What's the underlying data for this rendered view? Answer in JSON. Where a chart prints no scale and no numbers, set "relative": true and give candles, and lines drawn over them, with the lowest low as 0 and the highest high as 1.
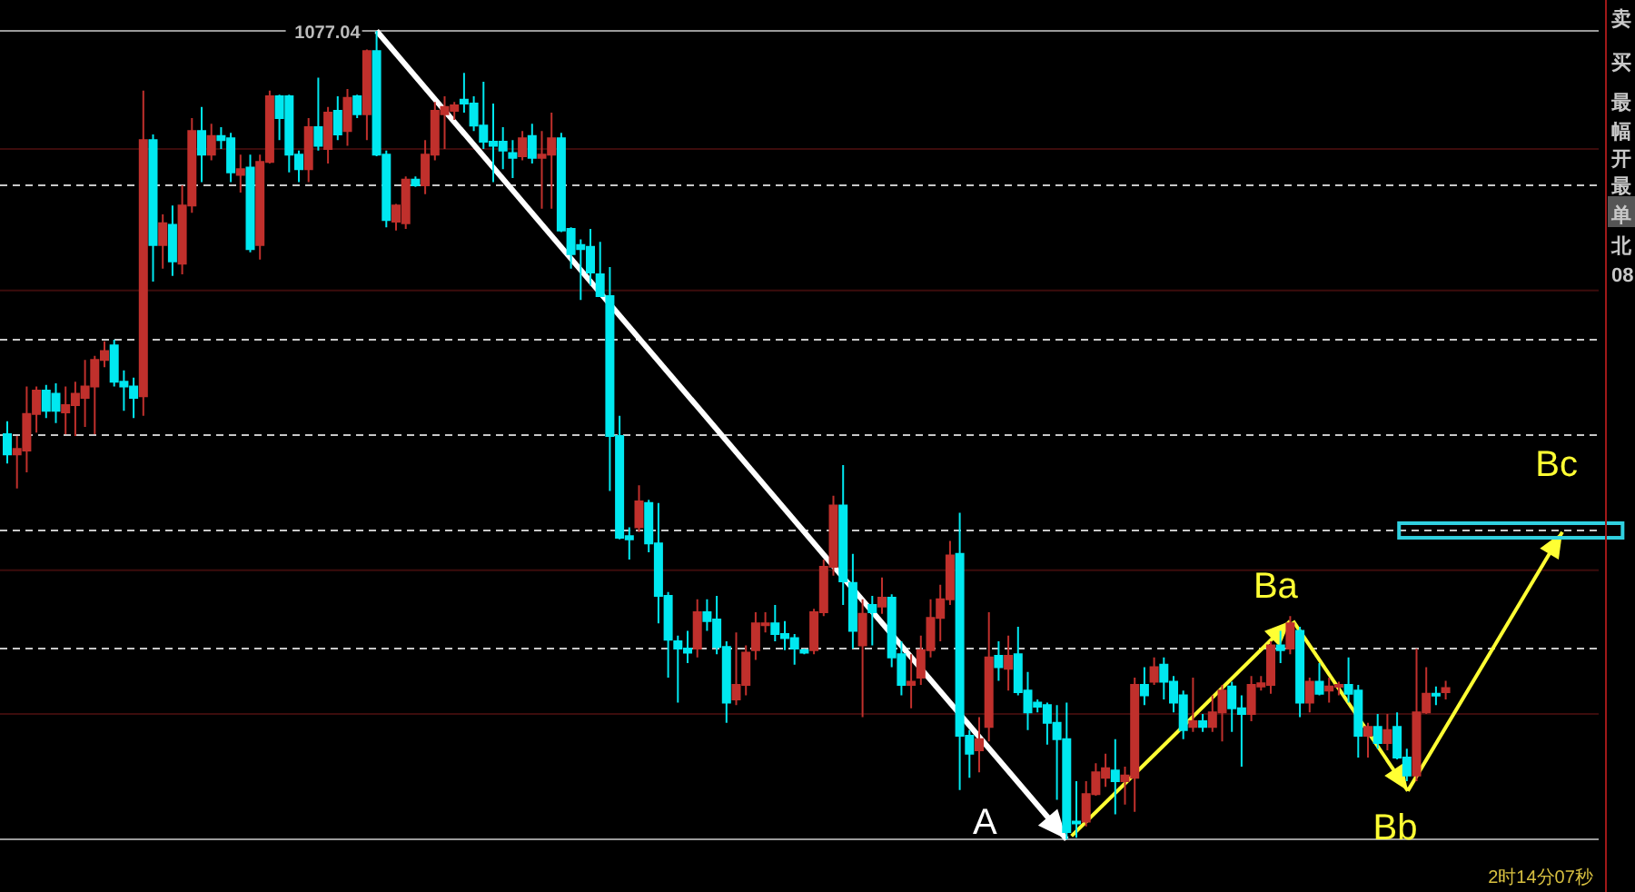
{
  "chart_data": {
    "type": "candlestick",
    "relative": true,
    "categories": [
      null,
      null,
      null,
      null,
      null,
      null,
      null,
      null,
      null,
      null,
      null,
      null,
      null,
      null,
      null,
      null,
      null,
      null,
      null,
      null,
      null,
      null,
      null,
      null,
      null,
      null,
      null,
      null,
      null,
      null,
      null,
      null,
      null,
      null,
      null,
      null,
      null,
      null,
      null,
      null,
      null,
      null,
      null,
      null,
      null,
      null,
      null,
      null,
      null,
      null,
      null,
      null,
      null,
      null,
      null,
      null,
      null,
      null,
      null,
      null,
      null,
      null,
      null,
      null,
      null,
      null,
      null,
      null,
      null,
      null,
      null,
      null,
      null,
      null,
      null,
      null,
      null,
      null,
      null,
      null,
      null,
      null,
      null,
      null,
      null,
      null,
      null,
      null,
      null,
      null,
      null,
      null,
      null,
      null,
      null,
      null,
      null,
      null,
      null,
      null,
      null,
      null,
      null,
      null,
      null,
      null,
      null,
      null,
      null,
      null,
      null,
      null,
      null,
      null,
      null,
      null,
      null,
      null,
      null,
      null,
      null,
      null,
      null,
      null,
      null,
      null,
      null,
      null,
      null,
      null,
      null,
      null,
      null,
      null,
      null,
      null,
      null,
      null,
      null,
      null,
      null,
      null,
      null,
      null,
      null,
      null,
      null,
      null,
      null
    ],
    "ohlc": [
      [
        0.501,
        0.517,
        0.465,
        0.476
      ],
      [
        0.476,
        0.499,
        0.434,
        0.483
      ],
      [
        0.481,
        0.56,
        0.454,
        0.526
      ],
      [
        0.526,
        0.56,
        0.503,
        0.555
      ],
      [
        0.555,
        0.562,
        0.521,
        0.53
      ],
      [
        0.551,
        0.564,
        0.515,
        0.53
      ],
      [
        0.528,
        0.56,
        0.501,
        0.537
      ],
      [
        0.537,
        0.566,
        0.499,
        0.551
      ],
      [
        0.546,
        0.593,
        0.51,
        0.56
      ],
      [
        0.56,
        0.598,
        0.501,
        0.593
      ],
      [
        0.593,
        0.616,
        0.584,
        0.604
      ],
      [
        0.611,
        0.618,
        0.56,
        0.566
      ],
      [
        0.566,
        0.58,
        0.53,
        0.56
      ],
      [
        0.56,
        0.571,
        0.521,
        0.546
      ],
      [
        0.548,
        0.926,
        0.524,
        0.865
      ],
      [
        0.865,
        0.872,
        0.69,
        0.735
      ],
      [
        0.735,
        0.773,
        0.706,
        0.762
      ],
      [
        0.76,
        0.784,
        0.697,
        0.715
      ],
      [
        0.712,
        0.809,
        0.699,
        0.784
      ],
      [
        0.784,
        0.892,
        0.775,
        0.876
      ],
      [
        0.876,
        0.906,
        0.813,
        0.847
      ],
      [
        0.847,
        0.885,
        0.84,
        0.87
      ],
      [
        0.87,
        0.881,
        0.854,
        0.865
      ],
      [
        0.867,
        0.874,
        0.813,
        0.825
      ],
      [
        0.822,
        0.847,
        0.8,
        0.829
      ],
      [
        0.831,
        0.847,
        0.726,
        0.73
      ],
      [
        0.735,
        0.847,
        0.717,
        0.838
      ],
      [
        0.838,
        0.926,
        0.836,
        0.919
      ],
      [
        0.919,
        0.921,
        0.865,
        0.892
      ],
      [
        0.919,
        0.921,
        0.825,
        0.847
      ],
      [
        0.847,
        0.852,
        0.813,
        0.829
      ],
      [
        0.829,
        0.892,
        0.813,
        0.881
      ],
      [
        0.881,
        0.942,
        0.852,
        0.858
      ],
      [
        0.854,
        0.906,
        0.836,
        0.899
      ],
      [
        0.901,
        0.919,
        0.865,
        0.872
      ],
      [
        0.876,
        0.928,
        0.858,
        0.917
      ],
      [
        0.919,
        0.921,
        0.892,
        0.897
      ],
      [
        0.897,
        0.977,
        0.865,
        0.975
      ],
      [
        0.975,
        1,
        0.845,
        0.847
      ],
      [
        0.847,
        0.852,
        0.757,
        0.766
      ],
      [
        0.764,
        0.786,
        0.753,
        0.784
      ],
      [
        0.762,
        0.82,
        0.755,
        0.816
      ],
      [
        0.816,
        0.82,
        0.807,
        0.809
      ],
      [
        0.809,
        0.865,
        0.798,
        0.847
      ],
      [
        0.847,
        0.912,
        0.84,
        0.901
      ],
      [
        0.897,
        0.919,
        0.854,
        0.906
      ],
      [
        0.901,
        0.912,
        0.89,
        0.908
      ],
      [
        0.915,
        0.948,
        0.899,
        0.91
      ],
      [
        0.91,
        0.919,
        0.876,
        0.883
      ],
      [
        0.883,
        0.937,
        0.854,
        0.863
      ],
      [
        0.863,
        0.91,
        0.813,
        0.858
      ],
      [
        0.863,
        0.881,
        0.829,
        0.852
      ],
      [
        0.849,
        0.865,
        0.818,
        0.843
      ],
      [
        0.845,
        0.876,
        0.84,
        0.867
      ],
      [
        0.87,
        0.885,
        0.836,
        0.843
      ],
      [
        0.843,
        0.876,
        0.78,
        0.847
      ],
      [
        0.847,
        0.899,
        0.78,
        0.867
      ],
      [
        0.867,
        0.874,
        0.751,
        0.753
      ],
      [
        0.755,
        0.757,
        0.706,
        0.724
      ],
      [
        0.735,
        0.742,
        0.667,
        0.73
      ],
      [
        0.733,
        0.755,
        0.685,
        0.701
      ],
      [
        0.699,
        0.739,
        0.672,
        0.672
      ],
      [
        0.672,
        0.708,
        0.431,
        0.499
      ],
      [
        0.499,
        0.524,
        0.371,
        0.373
      ],
      [
        0.375,
        0.386,
        0.346,
        0.371
      ],
      [
        0.386,
        0.438,
        0.38,
        0.418
      ],
      [
        0.416,
        0.42,
        0.355,
        0.366
      ],
      [
        0.366,
        0.416,
        0.267,
        0.301
      ],
      [
        0.301,
        0.306,
        0.2,
        0.247
      ],
      [
        0.245,
        0.252,
        0.169,
        0.236
      ],
      [
        0.236,
        0.258,
        0.218,
        0.231
      ],
      [
        0.236,
        0.297,
        0.225,
        0.281
      ],
      [
        0.281,
        0.297,
        0.258,
        0.27
      ],
      [
        0.272,
        0.301,
        0.229,
        0.238
      ],
      [
        0.238,
        0.245,
        0.144,
        0.169
      ],
      [
        0.173,
        0.256,
        0.166,
        0.191
      ],
      [
        0.191,
        0.24,
        0.178,
        0.231
      ],
      [
        0.234,
        0.281,
        0.222,
        0.267
      ],
      [
        0.265,
        0.281,
        0.256,
        0.267
      ],
      [
        0.267,
        0.29,
        0.245,
        0.254
      ],
      [
        0.254,
        0.27,
        0.234,
        0.249
      ],
      [
        0.249,
        0.254,
        0.216,
        0.236
      ],
      [
        0.234,
        0.236,
        0.229,
        0.231
      ],
      [
        0.234,
        0.285,
        0.229,
        0.281
      ],
      [
        0.281,
        0.346,
        0.276,
        0.337
      ],
      [
        0.337,
        0.425,
        0.326,
        0.413
      ],
      [
        0.413,
        0.463,
        0.29,
        0.319
      ],
      [
        0.317,
        0.353,
        0.236,
        0.258
      ],
      [
        0.24,
        0.297,
        0.151,
        0.279
      ],
      [
        0.29,
        0.301,
        0.24,
        0.281
      ],
      [
        0.288,
        0.324,
        0.279,
        0.299
      ],
      [
        0.299,
        0.303,
        0.213,
        0.225
      ],
      [
        0.229,
        0.245,
        0.178,
        0.191
      ],
      [
        0.191,
        0.229,
        0.162,
        0.195
      ],
      [
        0.2,
        0.252,
        0.191,
        0.234
      ],
      [
        0.234,
        0.297,
        0.225,
        0.274
      ],
      [
        0.274,
        0.315,
        0.245,
        0.297
      ],
      [
        0.297,
        0.369,
        0.29,
        0.351
      ],
      [
        0.353,
        0.404,
        0.061,
        0.128
      ],
      [
        0.128,
        0.135,
        0.076,
        0.106
      ],
      [
        0.11,
        0.151,
        0.083,
        0.124
      ],
      [
        0.139,
        0.281,
        0.121,
        0.225
      ],
      [
        0.227,
        0.245,
        0.196,
        0.213
      ],
      [
        0.211,
        0.252,
        0.184,
        0.227
      ],
      [
        0.229,
        0.263,
        0.178,
        0.182
      ],
      [
        0.184,
        0.207,
        0.135,
        0.157
      ],
      [
        0.169,
        0.173,
        0.157,
        0.164
      ],
      [
        0.166,
        0.169,
        0.117,
        0.144
      ],
      [
        0.144,
        0.166,
        0.049,
        0.124
      ],
      [
        0.124,
        0.169,
        0,
        0.009
      ],
      [
        0.022,
        0.072,
        0.002,
        0.02
      ],
      [
        0.022,
        0.072,
        0.016,
        0.056
      ],
      [
        0.056,
        0.094,
        0.054,
        0.083
      ],
      [
        0.076,
        0.106,
        0.065,
        0.088
      ],
      [
        0.085,
        0.124,
        0.031,
        0.072
      ],
      [
        0.072,
        0.09,
        0.043,
        0.079
      ],
      [
        0.076,
        0.2,
        0.034,
        0.191
      ],
      [
        0.191,
        0.213,
        0.166,
        0.178
      ],
      [
        0.195,
        0.225,
        0.191,
        0.213
      ],
      [
        0.216,
        0.225,
        0.173,
        0.195
      ],
      [
        0.195,
        0.202,
        0.157,
        0.169
      ],
      [
        0.178,
        0.184,
        0.124,
        0.135
      ],
      [
        0.139,
        0.2,
        0.133,
        0.146
      ],
      [
        0.146,
        0.155,
        0.133,
        0.139
      ],
      [
        0.139,
        0.178,
        0.133,
        0.157
      ],
      [
        0.157,
        0.191,
        0.121,
        0.184
      ],
      [
        0.189,
        0.195,
        0.133,
        0.162
      ],
      [
        0.162,
        0.178,
        0.09,
        0.155
      ],
      [
        0.155,
        0.202,
        0.146,
        0.191
      ],
      [
        0.189,
        0.202,
        0.184,
        0.193
      ],
      [
        0.191,
        0.245,
        0.18,
        0.24
      ],
      [
        0.24,
        0.258,
        0.218,
        0.234
      ],
      [
        0.236,
        0.276,
        0.229,
        0.267
      ],
      [
        0.258,
        0.263,
        0.151,
        0.169
      ],
      [
        0.169,
        0.2,
        0.157,
        0.195
      ],
      [
        0.195,
        0.218,
        0.178,
        0.18
      ],
      [
        0.184,
        0.2,
        0.169,
        0.189
      ],
      [
        0.189,
        0.195,
        0.178,
        0.191
      ],
      [
        0.191,
        0.225,
        0.169,
        0.18
      ],
      [
        0.184,
        0.191,
        0.101,
        0.128
      ],
      [
        0.128,
        0.144,
        0.101,
        0.139
      ],
      [
        0.139,
        0.155,
        0.112,
        0.119
      ],
      [
        0.119,
        0.155,
        0.11,
        0.135
      ],
      [
        0.139,
        0.157,
        0.099,
        0.101
      ],
      [
        0.101,
        0.112,
        0.072,
        0.079
      ],
      [
        0.079,
        0.236,
        0.072,
        0.157
      ],
      [
        0.157,
        0.213,
        0.155,
        0.18
      ],
      [
        0.18,
        0.189,
        0.166,
        0.178
      ],
      [
        0.182,
        0.196,
        0.173,
        0.187
      ]
    ],
    "ref_lines": [
      {
        "axis": "y",
        "value": 1,
        "color": "#9a9a9a",
        "line_style": "solid"
      },
      {
        "axis": "y",
        "value": 0,
        "color": "#9a9a9a",
        "line_style": "solid"
      },
      {
        "axis": "y",
        "value": 0.809,
        "color": "#c8c8c8",
        "line_style": "dashed"
      },
      {
        "axis": "y",
        "value": 0.618,
        "color": "#c8c8c8",
        "line_style": "dashed"
      },
      {
        "axis": "y",
        "value": 0.5,
        "color": "#c8c8c8",
        "line_style": "dashed"
      },
      {
        "axis": "y",
        "value": 0.382,
        "color": "#c8c8c8",
        "line_style": "dashed"
      },
      {
        "axis": "y",
        "value": 0.236,
        "color": "#c8c8c8",
        "line_style": "dashed"
      },
      {
        "axis": "y",
        "value": 0.854,
        "color": "#3c0c0c",
        "line_style": "solid"
      },
      {
        "axis": "y",
        "value": 0.679,
        "color": "#3c0c0c",
        "line_style": "solid"
      },
      {
        "axis": "y",
        "value": 0.333,
        "color": "#3c0c0c",
        "line_style": "solid"
      },
      {
        "axis": "y",
        "value": 0.155,
        "color": "#3c0c0c",
        "line_style": "solid"
      }
    ],
    "annotations": [
      "1077.04",
      "A",
      "Ba",
      "Bb",
      "Bc",
      "卖",
      "买",
      "最",
      "幅",
      "开",
      "最",
      "单",
      "北",
      "08",
      "2时14分07秒"
    ]
  }
}
